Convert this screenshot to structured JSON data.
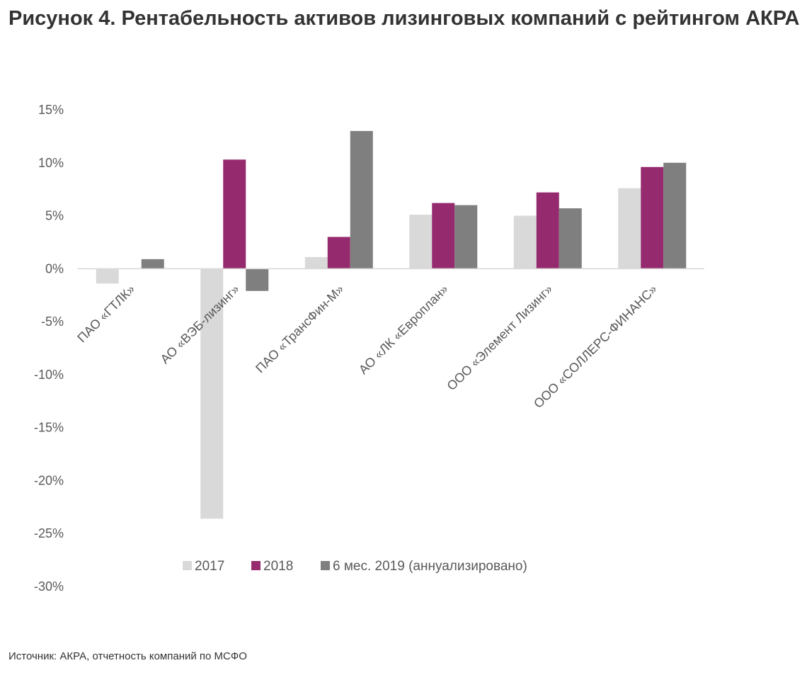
{
  "title": "Рисунок 4. Рентабельность активов лизинговых компаний с рейтингом АКРА",
  "source": "Источник: АКРА, отчетность компаний по МСФО",
  "colors": {
    "s2017": "#d9d9d9",
    "s2018": "#952b6e",
    "s2019": "#7f7f7f",
    "axis": "#d9d9d9",
    "text": "#595959"
  },
  "chart_data": {
    "type": "bar",
    "categories": [
      "ПАО «ГТЛК»",
      "АО «ВЭБ-лизинг»",
      "ПАО «ТрансФин-М»",
      "АО «ЛК «Европлан»",
      "ООО «Элемент Лизинг»",
      "ООО «СОЛЛЕРС-ФИНАНС»"
    ],
    "series": [
      {
        "name": "2017",
        "color": "#d9d9d9",
        "values": [
          -1.4,
          -23.6,
          1.1,
          5.1,
          5.0,
          7.6
        ]
      },
      {
        "name": "2018",
        "color": "#952b6e",
        "values": [
          0,
          10.3,
          3.0,
          6.2,
          7.2,
          9.6
        ]
      },
      {
        "name": "6 мес. 2019 (аннуализировано)",
        "color": "#7f7f7f",
        "values": [
          0.9,
          -2.1,
          13.0,
          6.0,
          5.7,
          10.0
        ]
      }
    ],
    "yticks": [
      "15%",
      "10%",
      "5%",
      "0%",
      "-5%",
      "-10%",
      "-15%",
      "-20%",
      "-25%",
      "-30%"
    ],
    "ylim": [
      -30,
      15
    ],
    "legend": "bottom",
    "grid": false
  }
}
